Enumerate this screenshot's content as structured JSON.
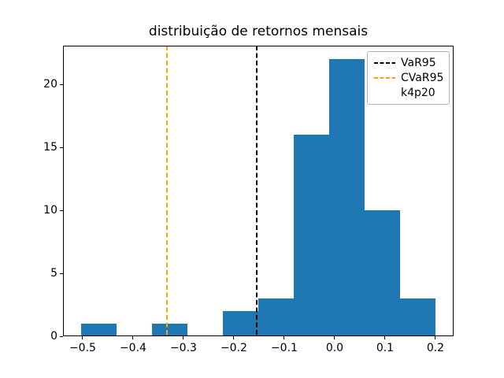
{
  "chart_data": {
    "type": "bar",
    "subtype": "histogram",
    "title": "distribuição de retornos mensais",
    "xlabel": "",
    "ylabel": "",
    "grid": false,
    "background_color": "#ffffff",
    "bar_color": "#1f77b4",
    "bin_edges": [
      -0.5036,
      -0.4333,
      -0.363,
      -0.2927,
      -0.2224,
      -0.1521,
      -0.0818,
      -0.0115,
      0.0588,
      0.1291,
      0.1994
    ],
    "counts": [
      1,
      0,
      1,
      0,
      2,
      3,
      16,
      22,
      10,
      3
    ],
    "xlim": [
      -0.539,
      0.236
    ],
    "ylim": [
      0,
      23.1
    ],
    "xticks": [
      {
        "v": -0.5,
        "label": "−0.5"
      },
      {
        "v": -0.4,
        "label": "−0.4"
      },
      {
        "v": -0.3,
        "label": "−0.3"
      },
      {
        "v": -0.2,
        "label": "−0.2"
      },
      {
        "v": -0.1,
        "label": "−0.1"
      },
      {
        "v": 0.0,
        "label": "0.0"
      },
      {
        "v": 0.1,
        "label": "0.1"
      },
      {
        "v": 0.2,
        "label": "0.2"
      }
    ],
    "yticks": [
      {
        "v": 0,
        "label": "0"
      },
      {
        "v": 5,
        "label": "5"
      },
      {
        "v": 10,
        "label": "10"
      },
      {
        "v": 15,
        "label": "15"
      },
      {
        "v": 20,
        "label": "20"
      }
    ],
    "vlines": [
      {
        "name": "VaR95",
        "x": -0.155,
        "color": "#000000",
        "style": "dashed"
      },
      {
        "name": "CVaR95",
        "x": -0.333,
        "color": "#ffa500",
        "style": "dashed"
      }
    ],
    "legend": {
      "position": "upper-right",
      "entries": [
        {
          "label": "VaR95",
          "line_color": "#000000",
          "line_style": "dashed"
        },
        {
          "label": "CVaR95",
          "line_color": "#ffa500",
          "line_style": "dashed"
        },
        {
          "label": "k4p20",
          "line_color": null,
          "line_style": "none"
        }
      ]
    }
  }
}
